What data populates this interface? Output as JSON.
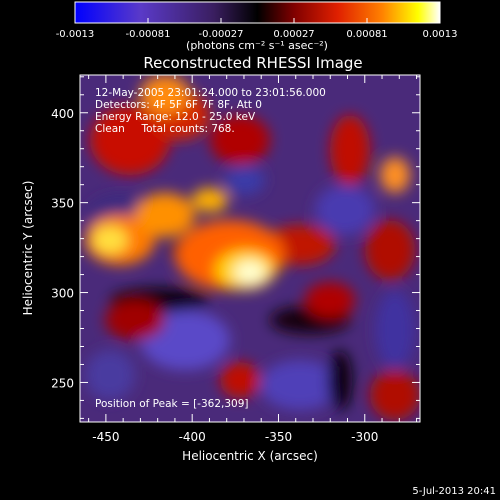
{
  "colorbar": {
    "tick_labels": [
      "-0.0013",
      "-0.00081",
      "-0.00027",
      "0.00027",
      "0.00081",
      "0.0013"
    ],
    "unit_label": "(photons cm⁻² s⁻¹ asec⁻²)",
    "range": [
      -0.0013,
      0.0013
    ],
    "colors": [
      "#0000ff",
      "#5a3ac8",
      "#4a2a80",
      "#000000",
      "#800000",
      "#e02000",
      "#ff8000",
      "#ffff00",
      "#ffffff"
    ]
  },
  "chart_data": {
    "type": "heatmap",
    "title": "Reconstructed RHESSI Image",
    "xlabel": "Heliocentric X (arcsec)",
    "ylabel": "Heliocentric Y (arcsec)",
    "xlim": [
      -465,
      -268
    ],
    "ylim": [
      228,
      421
    ],
    "x_ticks": [
      "-450",
      "-400",
      "-350",
      "-300"
    ],
    "y_ticks": [
      "250",
      "300",
      "350",
      "400"
    ],
    "annotations": [
      "12-May-2005 23:01:24.000 to 23:01:56.000",
      "Detectors: 4F 5F 6F 7F 8F, Att 0",
      "Energy Range: 12.0 - 25.0 keV",
      "Clean     Total counts: 768."
    ],
    "peak_label": "Position of Peak = [-362,309]",
    "peak": [
      -362,
      309
    ]
  },
  "footer": {
    "timestamp": "5-Jul-2013 20:41"
  }
}
